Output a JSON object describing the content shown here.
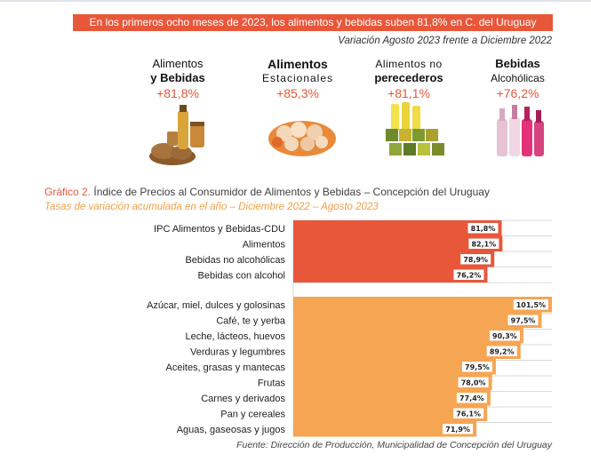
{
  "banner": "En los primeros ocho meses de 2023, los alimentos y bebidas suben 81,8% en C. del Uruguay",
  "subtitle": "Variación Agosto 2023 frente a Diciembre 2022",
  "categories": [
    {
      "line1": "Alimentos",
      "line2": "y Bebidas",
      "pct": "+81,8%"
    },
    {
      "line1": "Alimentos",
      "line2": "Estacionales",
      "pct": "+85,3%"
    },
    {
      "line1": "Alimentos no",
      "line2": "perecederos",
      "pct": "+81,1%"
    },
    {
      "line1": "Bebidas",
      "line2": "Alcohólicas",
      "pct": "+76,2%"
    }
  ],
  "graph_title_prefix": "Gráfico 2.",
  "graph_title": " Índice de Precios al Consumidor de Alimentos y Bebidas – Concepción del Uruguay",
  "graph_subtitle": "Tasas de variación acumulada en el año – Diciembre 2022 – Agosto 2023",
  "source": "Fuente: Dirección de Producción, Municipalidad de Concepción del Uruguay",
  "colors": {
    "accent": "#e8573a",
    "orange": "#f6a553",
    "grid": "#d9d9d9"
  },
  "chart_data": {
    "type": "bar",
    "orientation": "horizontal",
    "groups": [
      {
        "color": "#e8573a",
        "categories": [
          "IPC Alimentos y Bebidas-CDU",
          "Alimentos",
          "Bebidas no alcohólicas",
          "Bebidas con alcohol"
        ],
        "values": [
          81.8,
          82.1,
          78.9,
          76.2
        ],
        "labels": [
          "81,8%",
          "82,1%",
          "78,9%",
          "76,2%"
        ]
      },
      {
        "color": "#f6a553",
        "categories": [
          "Azúcar, miel, dulces y golosinas",
          "Café, te y yerba",
          "Leche, lácteos, huevos",
          "Verduras y legumbres",
          "Aceites, grasas y mantecas",
          "Frutas",
          "Carnes y derivados",
          "Pan y cereales",
          "Aguas, gaseosas y jugos"
        ],
        "values": [
          101.5,
          97.5,
          90.3,
          89.2,
          79.5,
          78.0,
          77.4,
          76.1,
          71.9
        ],
        "labels": [
          "101,5%",
          "97,5%",
          "90,3%",
          "89,2%",
          "79,5%",
          "78,0%",
          "77,4%",
          "76,1%",
          "71,9%"
        ]
      }
    ]
  }
}
